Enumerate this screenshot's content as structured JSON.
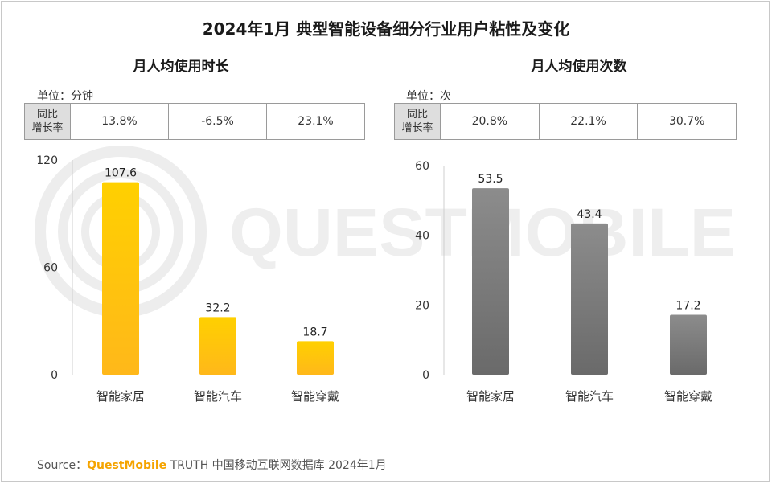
{
  "title": "2024年1月 典型智能设备细分行业用户粘性及变化",
  "growth_row_label": [
    "同比",
    "增长率"
  ],
  "watermark_text": "QUESTMOBILE",
  "source": {
    "prefix": "Source：",
    "brand": "QuestMobile",
    "rest": "TRUTH 中国移动互联网数据库 2024年1月"
  },
  "colors": {
    "left_bar_top": "#ffd000",
    "left_bar_bottom": "#ffb81a",
    "right_bar_top": "#8c8c8c",
    "right_bar_bottom": "#6a6a6a"
  },
  "chart_data": [
    {
      "type": "bar",
      "title": "月人均使用时长",
      "unit": "单位：分钟",
      "categories": [
        "智能家居",
        "智能汽车",
        "智能穿戴"
      ],
      "values": [
        107.6,
        32.2,
        18.7
      ],
      "labels": [
        "107.6",
        "32.2",
        "18.7"
      ],
      "yticks": [
        0,
        60,
        120
      ],
      "ylim": [
        0,
        120
      ],
      "growth": [
        "13.8%",
        "-6.5%",
        "23.1%"
      ]
    },
    {
      "type": "bar",
      "title": "月人均使用次数",
      "unit": "单位：次",
      "categories": [
        "智能家居",
        "智能汽车",
        "智能穿戴"
      ],
      "values": [
        53.5,
        43.4,
        17.2
      ],
      "labels": [
        "53.5",
        "43.4",
        "17.2"
      ],
      "yticks": [
        0,
        20,
        40,
        60
      ],
      "ylim": [
        0,
        60
      ],
      "growth": [
        "20.8%",
        "22.1%",
        "30.7%"
      ]
    }
  ]
}
